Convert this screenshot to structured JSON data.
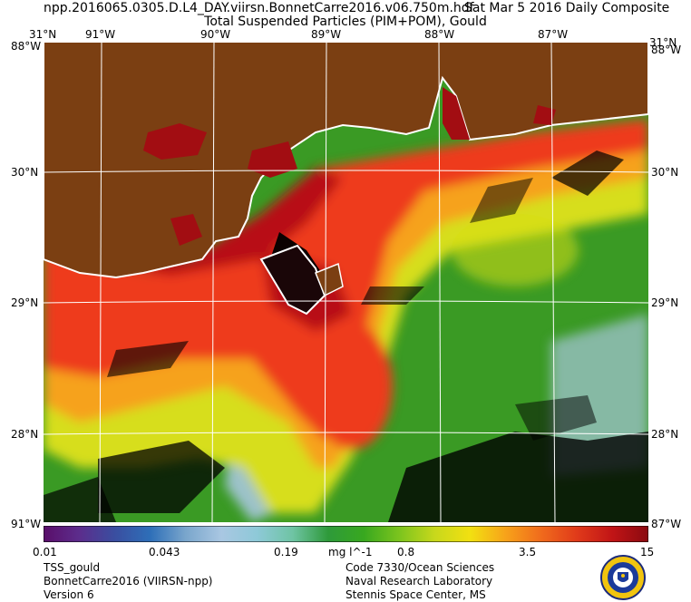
{
  "header": {
    "file": "npp.2016065.0305.D.L4_DAY.viirsn.BonnetCarre2016.v06.750m.hdf",
    "date": "Sat Mar  5 2016 Daily Composite",
    "product": "Total Suspended Particles (PIM+POM), Gould"
  },
  "axes": {
    "top_lon": [
      "91°W",
      "90°W",
      "89°W",
      "88°W",
      "87°W"
    ],
    "left_lat": [
      "30°N",
      "29°N",
      "28°N"
    ],
    "right_lat": [
      "30°N",
      "29°N",
      "28°N"
    ],
    "corner_tl": "31°N",
    "corner_tr": "31°N",
    "corner_bl": "91°W",
    "corner_br": "87°W",
    "corner_lt": "88°W",
    "corner_rt": "88°W"
  },
  "colorbar": {
    "labels": [
      "0.01",
      "0.043",
      "0.19",
      "0.8",
      "3.5",
      "15"
    ],
    "unit": "mg l^-1",
    "stops": [
      "#5a0e6a",
      "#5c2d8c",
      "#3a4ea0",
      "#2e6fb8",
      "#7aa6cc",
      "#a9c7e2",
      "#8ec9d8",
      "#6fc4a4",
      "#2e9a3a",
      "#38a81f",
      "#7cc41e",
      "#c8d81c",
      "#f2e011",
      "#f7a21a",
      "#f06a1c",
      "#e03a1a",
      "#c01416",
      "#8a0a10"
    ]
  },
  "footer": {
    "left": [
      "TSS_gould",
      "BonnetCarre2016 (VIIRSN-npp)",
      "Version 6"
    ],
    "right": [
      "Code 7330/Ocean Sciences",
      "Naval Research Laboratory",
      "Stennis Space Center, MS"
    ]
  },
  "colors": {
    "land": "#7b3f12",
    "coast_turbid": "#b80e12",
    "nearshore": "#ee3a1a",
    "mid": "#f6a21e",
    "transition": "#d7de1a",
    "offshore": "#3a9a24",
    "clear": "#a7c6dc",
    "cloud": "#000000",
    "grid": "#ffffff"
  }
}
